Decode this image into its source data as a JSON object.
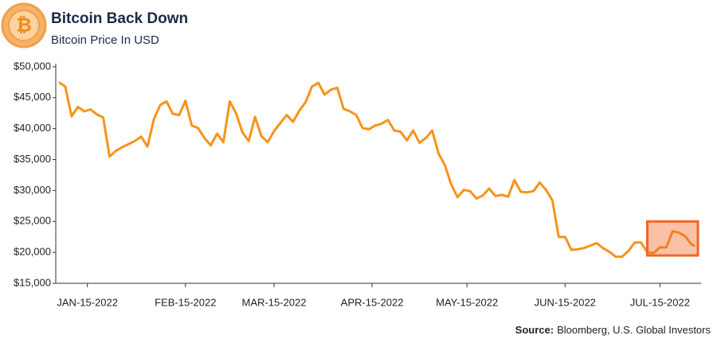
{
  "chart_data": {
    "type": "line",
    "title": "Bitcoin Back Down",
    "subtitle": "Bitcoin Price In USD",
    "source_label": "Source:",
    "source": "Bloomberg, U.S. Global Investors",
    "color": "#f7931a",
    "grid": false,
    "x": [
      "2022-01-06",
      "2022-01-08",
      "2022-01-10",
      "2022-01-12",
      "2022-01-14",
      "2022-01-16",
      "2022-01-18",
      "2022-01-20",
      "2022-01-22",
      "2022-01-24",
      "2022-01-26",
      "2022-01-28",
      "2022-01-30",
      "2022-02-01",
      "2022-02-03",
      "2022-02-05",
      "2022-02-07",
      "2022-02-09",
      "2022-02-11",
      "2022-02-13",
      "2022-02-15",
      "2022-02-17",
      "2022-02-19",
      "2022-02-21",
      "2022-02-23",
      "2022-02-25",
      "2022-02-27",
      "2022-03-01",
      "2022-03-03",
      "2022-03-05",
      "2022-03-07",
      "2022-03-09",
      "2022-03-11",
      "2022-03-13",
      "2022-03-15",
      "2022-03-17",
      "2022-03-19",
      "2022-03-21",
      "2022-03-23",
      "2022-03-25",
      "2022-03-27",
      "2022-03-29",
      "2022-03-31",
      "2022-04-02",
      "2022-04-04",
      "2022-04-06",
      "2022-04-08",
      "2022-04-10",
      "2022-04-12",
      "2022-04-14",
      "2022-04-16",
      "2022-04-18",
      "2022-04-20",
      "2022-04-22",
      "2022-04-24",
      "2022-04-26",
      "2022-04-28",
      "2022-04-30",
      "2022-05-02",
      "2022-05-04",
      "2022-05-06",
      "2022-05-08",
      "2022-05-10",
      "2022-05-12",
      "2022-05-14",
      "2022-05-16",
      "2022-05-18",
      "2022-05-20",
      "2022-05-22",
      "2022-05-24",
      "2022-05-26",
      "2022-05-28",
      "2022-05-30",
      "2022-06-01",
      "2022-06-03",
      "2022-06-05",
      "2022-06-07",
      "2022-06-09",
      "2022-06-11",
      "2022-06-13",
      "2022-06-15",
      "2022-06-17",
      "2022-06-19",
      "2022-06-21",
      "2022-06-23",
      "2022-06-25",
      "2022-06-27",
      "2022-06-29",
      "2022-07-01",
      "2022-07-03",
      "2022-07-05",
      "2022-07-07",
      "2022-07-09",
      "2022-07-11",
      "2022-07-13",
      "2022-07-15",
      "2022-07-17",
      "2022-07-19",
      "2022-07-21",
      "2022-07-23",
      "2022-07-25",
      "2022-07-26"
    ],
    "values": [
      47500,
      46800,
      42000,
      43500,
      42800,
      43100,
      42300,
      41800,
      35500,
      36400,
      37000,
      37500,
      38000,
      38700,
      37100,
      41500,
      43800,
      44400,
      42400,
      42200,
      44500,
      40500,
      40100,
      38500,
      37300,
      39200,
      37800,
      44400,
      42500,
      39400,
      38000,
      41900,
      38800,
      37800,
      39600,
      40900,
      42200,
      41100,
      42900,
      44300,
      46800,
      47400,
      45500,
      46300,
      46600,
      43200,
      42800,
      42200,
      40100,
      39900,
      40500,
      40800,
      41400,
      39700,
      39500,
      38100,
      39700,
      37700,
      38500,
      39700,
      36000,
      34100,
      31000,
      28900,
      30100,
      29900,
      28700,
      29200,
      30300,
      29100,
      29300,
      29000,
      31700,
      29800,
      29700,
      29900,
      31300,
      30100,
      28400,
      22500,
      22500,
      20400,
      20500,
      20700,
      21100,
      21500,
      20700,
      20100,
      19300,
      19300,
      20200,
      21600,
      21600,
      20000,
      19900,
      20800,
      20800,
      23400,
      23200,
      22600,
      21300,
      21000
    ],
    "xlim": [
      "2022-01-05",
      "2022-07-28"
    ],
    "xticks": [
      {
        "value": "2022-01-15",
        "label": "JAN-15-2022"
      },
      {
        "value": "2022-02-15",
        "label": "FEB-15-2022"
      },
      {
        "value": "2022-03-15",
        "label": "MAR-15-2022"
      },
      {
        "value": "2022-04-15",
        "label": "APR-15-2022"
      },
      {
        "value": "2022-05-15",
        "label": "MAY-15-2022"
      },
      {
        "value": "2022-06-15",
        "label": "JUN-15-2022"
      },
      {
        "value": "2022-07-15",
        "label": "JUL-15-2022"
      }
    ],
    "ylim": [
      15000,
      50500
    ],
    "yticks": [
      {
        "value": 15000,
        "label": "$15,000"
      },
      {
        "value": 20000,
        "label": "$20,000"
      },
      {
        "value": 25000,
        "label": "$25,000"
      },
      {
        "value": 30000,
        "label": "$30,000"
      },
      {
        "value": 35000,
        "label": "$35,000"
      },
      {
        "value": 40000,
        "label": "$40,000"
      },
      {
        "value": 45000,
        "label": "$45,000"
      },
      {
        "value": 50000,
        "label": "$50,000"
      }
    ],
    "highlight": {
      "x": [
        "2022-07-11",
        "2022-07-27"
      ],
      "y": [
        19500,
        25000
      ],
      "color": "#f26522"
    }
  }
}
